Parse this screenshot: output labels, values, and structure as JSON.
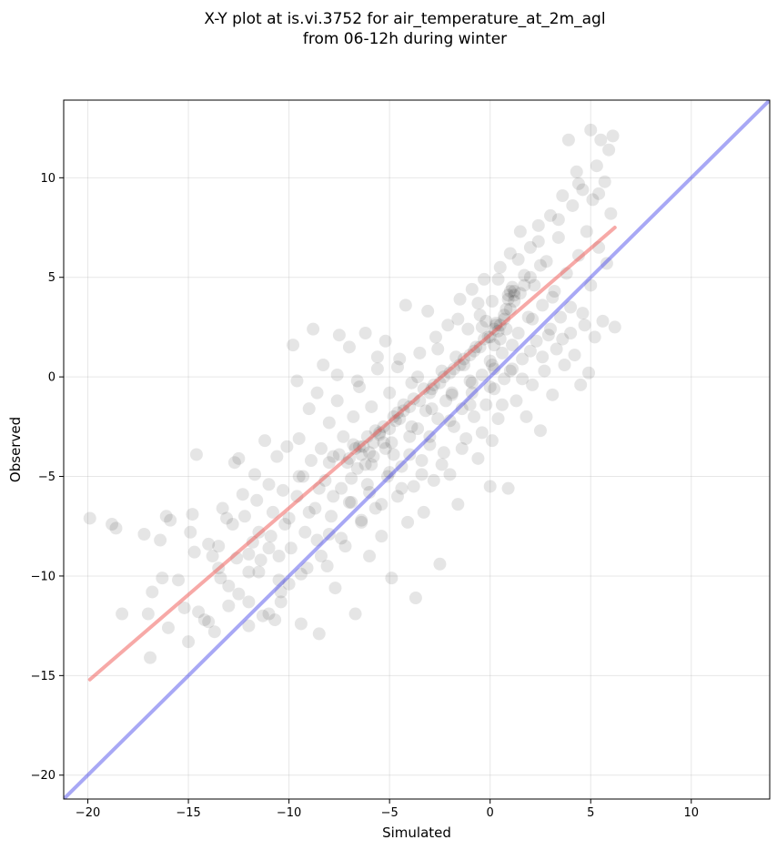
{
  "chart_data": {
    "type": "scatter",
    "title": "X-Y plot at is.vi.3752 for air_temperature_at_2m_agl",
    "subtitle": "from 06-12h during winter",
    "xlabel": "Simulated",
    "ylabel": "Observed",
    "xlim": [
      -21.2,
      13.9
    ],
    "ylim": [
      -21.2,
      13.9
    ],
    "xticks": [
      -20,
      -15,
      -10,
      -5,
      0,
      5,
      10
    ],
    "yticks": [
      -20,
      -15,
      -10,
      -5,
      0,
      5,
      10
    ],
    "grid": true,
    "point_color": "#000000",
    "point_alpha": 0.1,
    "colors": {
      "fit_line": "#ef5350",
      "identity_line": "#3f3fe8"
    },
    "fit_line": {
      "x": [
        -19.9,
        6.2
      ],
      "y": [
        -15.2,
        7.5
      ]
    },
    "identity_line": {
      "x": [
        -21.2,
        13.9
      ],
      "y": [
        -21.2,
        13.9
      ]
    },
    "points": [
      [
        -19.9,
        -7.1
      ],
      [
        -18.8,
        -7.4
      ],
      [
        -18.6,
        -7.6
      ],
      [
        -18.3,
        -11.9
      ],
      [
        -17.2,
        -7.9
      ],
      [
        -17.0,
        -11.9
      ],
      [
        -16.9,
        -14.1
      ],
      [
        -16.8,
        -10.8
      ],
      [
        -16.4,
        -8.2
      ],
      [
        -16.3,
        -10.1
      ],
      [
        -16.1,
        -7.0
      ],
      [
        -16.0,
        -12.6
      ],
      [
        -15.9,
        -7.2
      ],
      [
        -15.5,
        -10.2
      ],
      [
        -15.2,
        -11.6
      ],
      [
        -15.0,
        -13.3
      ],
      [
        -14.9,
        -7.8
      ],
      [
        -14.8,
        -6.9
      ],
      [
        -14.7,
        -8.8
      ],
      [
        -14.6,
        -3.9
      ],
      [
        -14.5,
        -11.8
      ],
      [
        -14.2,
        -12.2
      ],
      [
        -14.0,
        -8.4
      ],
      [
        -13.8,
        -9.0
      ],
      [
        -13.7,
        -12.8
      ],
      [
        -13.5,
        -8.5
      ],
      [
        -13.4,
        -10.1
      ],
      [
        -13.3,
        -6.6
      ],
      [
        -13.1,
        -7.1
      ],
      [
        -13.0,
        -11.5
      ],
      [
        -12.8,
        -7.4
      ],
      [
        -12.7,
        -4.3
      ],
      [
        -12.6,
        -9.1
      ],
      [
        -12.5,
        -4.1
      ],
      [
        -12.3,
        -5.9
      ],
      [
        -12.2,
        -7.0
      ],
      [
        -12.0,
        -9.8
      ],
      [
        -12.0,
        -12.5
      ],
      [
        -11.8,
        -8.3
      ],
      [
        -11.7,
        -4.9
      ],
      [
        -11.6,
        -6.2
      ],
      [
        -11.5,
        -7.8
      ],
      [
        -11.4,
        -9.2
      ],
      [
        -11.3,
        -12.0
      ],
      [
        -11.2,
        -3.2
      ],
      [
        -11.0,
        -5.4
      ],
      [
        -10.9,
        -8.0
      ],
      [
        -10.8,
        -6.8
      ],
      [
        -10.7,
        -12.2
      ],
      [
        -10.6,
        -4.0
      ],
      [
        -10.5,
        -9.0
      ],
      [
        -10.4,
        -11.3
      ],
      [
        -10.3,
        -5.7
      ],
      [
        -10.2,
        -7.4
      ],
      [
        -10.1,
        -3.5
      ],
      [
        -10.0,
        -10.4
      ],
      [
        -9.9,
        -8.6
      ],
      [
        -9.8,
        1.6
      ],
      [
        -9.6,
        -0.2
      ],
      [
        -9.6,
        -6.0
      ],
      [
        -9.5,
        -3.1
      ],
      [
        -9.4,
        -12.4
      ],
      [
        -9.3,
        -5.0
      ],
      [
        -9.2,
        -7.8
      ],
      [
        -9.1,
        -9.6
      ],
      [
        -9.0,
        -1.6
      ],
      [
        -8.9,
        -4.2
      ],
      [
        -8.8,
        2.4
      ],
      [
        -8.7,
        -6.6
      ],
      [
        -8.6,
        -8.2
      ],
      [
        -8.5,
        -12.9
      ],
      [
        -8.4,
        -3.6
      ],
      [
        -8.3,
        0.6
      ],
      [
        -8.2,
        -5.2
      ],
      [
        -8.1,
        -9.5
      ],
      [
        -8.0,
        -2.3
      ],
      [
        -7.9,
        -7.0
      ],
      [
        -7.8,
        -4.0
      ],
      [
        -7.7,
        -10.6
      ],
      [
        -7.6,
        -1.2
      ],
      [
        -7.5,
        2.1
      ],
      [
        -7.4,
        -5.6
      ],
      [
        -7.3,
        -3.0
      ],
      [
        -7.2,
        -8.5
      ],
      [
        -7.1,
        -4.3
      ],
      [
        -7.0,
        1.5
      ],
      [
        -6.9,
        -6.3
      ],
      [
        -6.8,
        -2.0
      ],
      [
        -6.7,
        -11.9
      ],
      [
        -6.6,
        -4.6
      ],
      [
        -6.5,
        -0.5
      ],
      [
        -6.4,
        -7.3
      ],
      [
        -6.3,
        -3.5
      ],
      [
        -6.2,
        2.2
      ],
      [
        -6.1,
        -5.4
      ],
      [
        -6.0,
        -9.0
      ],
      [
        -5.9,
        -1.5
      ],
      [
        -5.8,
        -4.0
      ],
      [
        -5.7,
        -6.6
      ],
      [
        -5.6,
        0.4
      ],
      [
        -5.5,
        -2.8
      ],
      [
        -5.4,
        -8.0
      ],
      [
        -5.3,
        -3.3
      ],
      [
        -5.2,
        1.8
      ],
      [
        -5.1,
        -5.0
      ],
      [
        -5.0,
        -0.8
      ],
      [
        -4.9,
        -10.1
      ],
      [
        -4.8,
        -3.9
      ],
      [
        -4.7,
        -2.2
      ],
      [
        -4.6,
        -6.0
      ],
      [
        -4.5,
        0.9
      ],
      [
        -4.4,
        -4.5
      ],
      [
        -4.3,
        -1.4
      ],
      [
        -4.2,
        3.6
      ],
      [
        -4.1,
        -7.3
      ],
      [
        -4.0,
        -3.0
      ],
      [
        -3.9,
        -0.3
      ],
      [
        -3.8,
        -5.5
      ],
      [
        -3.7,
        -11.1
      ],
      [
        -3.6,
        -2.6
      ],
      [
        -3.5,
        1.2
      ],
      [
        -3.4,
        -4.2
      ],
      [
        -3.3,
        -6.8
      ],
      [
        -3.2,
        -1.7
      ],
      [
        -3.1,
        3.3
      ],
      [
        -3.0,
        -3.4
      ],
      [
        -2.9,
        -0.6
      ],
      [
        -2.8,
        -5.2
      ],
      [
        -2.7,
        2.0
      ],
      [
        -2.6,
        -2.1
      ],
      [
        -2.5,
        -9.4
      ],
      [
        -2.4,
        0.3
      ],
      [
        -2.3,
        -3.8
      ],
      [
        -2.2,
        -1.2
      ],
      [
        -2.1,
        2.6
      ],
      [
        -2.0,
        -4.9
      ],
      [
        -1.9,
        -0.8
      ],
      [
        -1.8,
        -2.5
      ],
      [
        -1.7,
        1.0
      ],
      [
        -1.6,
        -6.4
      ],
      [
        -1.5,
        3.9
      ],
      [
        -1.4,
        -1.6
      ],
      [
        -1.3,
        0.6
      ],
      [
        -1.2,
        -3.1
      ],
      [
        -1.1,
        2.4
      ],
      [
        -1.0,
        -0.2
      ],
      [
        -0.9,
        4.4
      ],
      [
        -0.8,
        -2.0
      ],
      [
        -0.7,
        1.5
      ],
      [
        -0.6,
        -4.1
      ],
      [
        -0.5,
        3.1
      ],
      [
        -0.4,
        0.1
      ],
      [
        -0.3,
        4.9
      ],
      [
        -0.2,
        -1.4
      ],
      [
        -0.1,
        2.0
      ],
      [
        0.0,
        -5.5
      ],
      [
        0.0,
        0.8
      ],
      [
        0.1,
        3.8
      ],
      [
        0.2,
        -0.6
      ],
      [
        0.3,
        2.6
      ],
      [
        0.4,
        -2.1
      ],
      [
        0.5,
        5.5
      ],
      [
        0.6,
        1.2
      ],
      [
        0.7,
        -0.1
      ],
      [
        0.8,
        3.4
      ],
      [
        0.9,
        -5.6
      ],
      [
        1.0,
        6.2
      ],
      [
        1.1,
        0.4
      ],
      [
        1.2,
        4.3
      ],
      [
        1.3,
        -1.2
      ],
      [
        1.4,
        2.2
      ],
      [
        1.5,
        7.3
      ],
      [
        1.6,
        0.9
      ],
      [
        1.7,
        5.1
      ],
      [
        1.8,
        -2.0
      ],
      [
        1.9,
        3.0
      ],
      [
        2.0,
        6.5
      ],
      [
        2.1,
        -0.4
      ],
      [
        2.2,
        4.6
      ],
      [
        2.3,
        1.8
      ],
      [
        2.4,
        7.6
      ],
      [
        2.5,
        -2.7
      ],
      [
        2.6,
        3.6
      ],
      [
        2.7,
        0.3
      ],
      [
        2.8,
        5.8
      ],
      [
        2.9,
        2.1
      ],
      [
        3.0,
        8.1
      ],
      [
        3.1,
        -0.9
      ],
      [
        3.2,
        4.3
      ],
      [
        3.3,
        1.4
      ],
      [
        3.4,
        7.0
      ],
      [
        3.5,
        3.0
      ],
      [
        3.6,
        9.1
      ],
      [
        3.7,
        0.6
      ],
      [
        3.8,
        5.2
      ],
      [
        3.9,
        11.9
      ],
      [
        4.0,
        2.2
      ],
      [
        4.1,
        8.6
      ],
      [
        4.2,
        1.1
      ],
      [
        4.3,
        10.3
      ],
      [
        4.4,
        6.1
      ],
      [
        4.5,
        -0.4
      ],
      [
        4.6,
        9.4
      ],
      [
        4.7,
        2.6
      ],
      [
        4.8,
        7.3
      ],
      [
        4.9,
        0.2
      ],
      [
        5.0,
        12.4
      ],
      [
        5.1,
        8.9
      ],
      [
        5.2,
        2.0
      ],
      [
        5.3,
        10.6
      ],
      [
        5.4,
        6.5
      ],
      [
        5.5,
        11.9
      ],
      [
        5.6,
        2.8
      ],
      [
        5.7,
        9.8
      ],
      [
        5.8,
        5.7
      ],
      [
        5.9,
        11.4
      ],
      [
        6.0,
        8.2
      ],
      [
        6.1,
        12.1
      ],
      [
        6.2,
        2.5
      ],
      [
        -0.9,
        -0.8
      ],
      [
        0.2,
        0.4
      ],
      [
        1.1,
        4.5
      ],
      [
        0.9,
        3.9
      ],
      [
        0.7,
        3.1
      ],
      [
        -7.0,
        -4.1
      ],
      [
        -6.5,
        -3.5
      ],
      [
        -6.0,
        -3.8
      ],
      [
        -5.5,
        -2.9
      ],
      [
        -5.0,
        -2.6
      ],
      [
        -4.5,
        -2.1
      ],
      [
        -4.0,
        -1.5
      ],
      [
        -3.5,
        -1.2
      ],
      [
        -3.0,
        -0.8
      ],
      [
        -2.5,
        -0.3
      ],
      [
        -2.0,
        0.2
      ],
      [
        -1.5,
        0.6
      ],
      [
        -1.0,
        1.1
      ],
      [
        -0.5,
        1.5
      ],
      [
        0.0,
        2.0
      ],
      [
        0.5,
        2.6
      ],
      [
        1.0,
        3.4
      ],
      [
        1.5,
        4.2
      ],
      [
        2.0,
        5.0
      ],
      [
        2.5,
        5.6
      ],
      [
        -8.0,
        -4.3
      ],
      [
        -7.5,
        -3.9
      ],
      [
        -6.8,
        -3.4
      ],
      [
        -6.2,
        -4.4
      ],
      [
        -5.8,
        -3.3
      ],
      [
        -5.3,
        -2.5
      ],
      [
        -4.8,
        -2.0
      ],
      [
        -4.3,
        -1.7
      ],
      [
        -3.8,
        -1.1
      ],
      [
        -3.3,
        -0.6
      ],
      [
        -2.8,
        -0.4
      ],
      [
        -2.3,
        0.0
      ],
      [
        -1.8,
        0.4
      ],
      [
        -1.3,
        0.9
      ],
      [
        -0.8,
        1.3
      ],
      [
        -0.3,
        1.9
      ],
      [
        0.2,
        2.4
      ],
      [
        0.7,
        2.9
      ],
      [
        1.2,
        3.8
      ],
      [
        1.7,
        4.6
      ],
      [
        -9.5,
        -5.0
      ],
      [
        -8.5,
        -5.6
      ],
      [
        -7.8,
        -6.0
      ],
      [
        -6.9,
        -5.1
      ],
      [
        -5.9,
        -4.4
      ],
      [
        -4.9,
        -3.3
      ],
      [
        -3.9,
        -2.5
      ],
      [
        -2.9,
        -1.6
      ],
      [
        -1.9,
        -0.9
      ],
      [
        -0.9,
        -0.3
      ],
      [
        0.1,
        0.6
      ],
      [
        1.1,
        1.6
      ],
      [
        2.1,
        2.9
      ],
      [
        3.1,
        4.0
      ],
      [
        -11.0,
        -8.6
      ],
      [
        -10.0,
        -7.1
      ],
      [
        -12.0,
        -8.9
      ],
      [
        -9.0,
        -6.8
      ],
      [
        -8.0,
        -7.9
      ],
      [
        -7.0,
        -6.3
      ],
      [
        -6.0,
        -5.8
      ],
      [
        -5.0,
        -4.8
      ],
      [
        -4.0,
        -3.9
      ],
      [
        -3.0,
        -3.0
      ],
      [
        -2.0,
        -2.2
      ],
      [
        -1.0,
        -1.4
      ],
      [
        0.0,
        -0.5
      ],
      [
        1.0,
        0.3
      ],
      [
        2.0,
        1.3
      ],
      [
        3.0,
        2.4
      ],
      [
        4.0,
        3.5
      ],
      [
        5.0,
        4.6
      ],
      [
        -13.0,
        -10.5
      ],
      [
        -12.5,
        -10.9
      ],
      [
        -11.5,
        -9.8
      ],
      [
        -10.5,
        -10.2
      ],
      [
        -13.5,
        -9.6
      ],
      [
        -12.0,
        -11.3
      ],
      [
        -11.0,
        -11.9
      ],
      [
        -14.0,
        -12.3
      ],
      [
        -6.6,
        -0.2
      ],
      [
        -7.6,
        0.1
      ],
      [
        -8.6,
        -0.8
      ],
      [
        -5.6,
        1.0
      ],
      [
        -4.6,
        0.5
      ],
      [
        -3.6,
        0.0
      ],
      [
        -2.6,
        1.4
      ],
      [
        -1.6,
        2.9
      ],
      [
        -0.6,
        3.7
      ],
      [
        0.4,
        4.9
      ],
      [
        1.4,
        5.9
      ],
      [
        2.4,
        6.8
      ],
      [
        3.4,
        7.9
      ],
      [
        4.4,
        9.7
      ],
      [
        5.4,
        9.2
      ],
      [
        0.1,
        -3.2
      ],
      [
        0.6,
        -1.4
      ],
      [
        1.6,
        -0.1
      ],
      [
        2.6,
        1.0
      ],
      [
        3.6,
        1.9
      ],
      [
        4.6,
        3.2
      ],
      [
        -1.4,
        -3.6
      ],
      [
        -0.4,
        -2.8
      ],
      [
        -2.4,
        -4.4
      ],
      [
        -3.4,
        -4.9
      ],
      [
        -4.4,
        -5.6
      ],
      [
        -5.4,
        -6.4
      ],
      [
        -6.4,
        -7.2
      ],
      [
        -7.4,
        -8.1
      ],
      [
        -8.4,
        -9.0
      ],
      [
        -9.4,
        -9.9
      ],
      [
        -10.4,
        -10.8
      ],
      [
        0.9,
        4.1
      ],
      [
        1.0,
        4.3
      ],
      [
        1.2,
        4.1
      ],
      [
        0.8,
        2.4
      ],
      [
        0.4,
        2.3
      ],
      [
        0.3,
        2.7
      ],
      [
        -0.2,
        2.8
      ],
      [
        -0.4,
        2.5
      ],
      [
        0.5,
        1.9
      ],
      [
        0.2,
        1.6
      ],
      [
        -6.4,
        -3.9
      ],
      [
        -6.7,
        -3.6
      ],
      [
        -6.1,
        -3.0
      ],
      [
        -5.7,
        -2.7
      ],
      [
        -5.2,
        -3.6
      ],
      [
        -4.6,
        -1.8
      ]
    ]
  }
}
